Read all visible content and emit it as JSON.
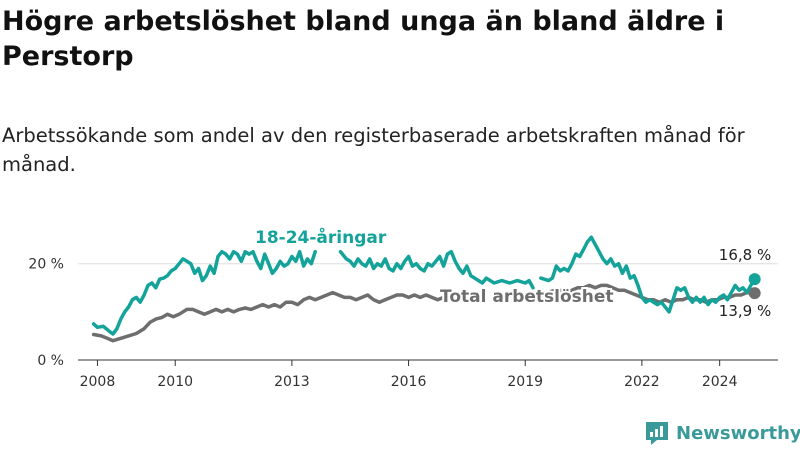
{
  "title": "Högre arbetslöshet bland unga än bland äldre i Perstorp",
  "subtitle": "Arbetssökande som andel av den registerbaserade arbetskraften månad för månad.",
  "brand": {
    "name": "Newsworthy",
    "color": "#3a9a9a"
  },
  "colors": {
    "youth": "#14a39a",
    "total": "#6e6e6e",
    "grid": "#dddddd",
    "axis": "#333333"
  },
  "chart_data": {
    "type": "line",
    "xlim": [
      2007.5,
      2025.5
    ],
    "ylim": [
      0,
      27
    ],
    "x_ticks": [
      2008,
      2010,
      2013,
      2016,
      2019,
      2022,
      2024
    ],
    "x_tick_labels": [
      "2008",
      "2010",
      "2013",
      "2016",
      "2019",
      "2022",
      "2024"
    ],
    "y_ticks": [
      0,
      20
    ],
    "y_tick_labels": [
      "0 %",
      "20 %"
    ],
    "series": [
      {
        "name": "18-24-åringar",
        "label": "18-24-åringar",
        "color": "#14a39a",
        "end_value": 16.8,
        "end_label": "16,8 %",
        "points": [
          [
            2007.9,
            7.5
          ],
          [
            2008.0,
            6.8
          ],
          [
            2008.15,
            7.0
          ],
          [
            2008.3,
            6.0
          ],
          [
            2008.4,
            5.4
          ],
          [
            2008.5,
            6.5
          ],
          [
            2008.6,
            8.5
          ],
          [
            2008.7,
            10.0
          ],
          [
            2008.8,
            11.0
          ],
          [
            2008.9,
            12.5
          ],
          [
            2009.0,
            13.0
          ],
          [
            2009.1,
            12.0
          ],
          [
            2009.2,
            13.5
          ],
          [
            2009.3,
            15.5
          ],
          [
            2009.4,
            16.0
          ],
          [
            2009.5,
            15.0
          ],
          [
            2009.6,
            16.8
          ],
          [
            2009.7,
            17.0
          ],
          [
            2009.8,
            17.5
          ],
          [
            2009.9,
            18.5
          ],
          [
            2010.0,
            19.0
          ],
          [
            2010.1,
            20.0
          ],
          [
            2010.2,
            21.0
          ],
          [
            2010.3,
            20.5
          ],
          [
            2010.4,
            20.0
          ],
          [
            2010.5,
            18.0
          ],
          [
            2010.6,
            19.0
          ],
          [
            2010.7,
            16.5
          ],
          [
            2010.8,
            17.5
          ],
          [
            2010.9,
            19.5
          ],
          [
            2011.0,
            18.0
          ],
          [
            2011.1,
            21.5
          ],
          [
            2011.2,
            22.5
          ],
          [
            2011.3,
            22.0
          ],
          [
            2011.4,
            21.0
          ],
          [
            2011.5,
            22.5
          ],
          [
            2011.6,
            22.0
          ],
          [
            2011.7,
            20.5
          ],
          [
            2011.8,
            22.5
          ],
          [
            2011.9,
            22.0
          ],
          [
            2012.0,
            22.5
          ],
          [
            2012.1,
            20.5
          ],
          [
            2012.2,
            19.0
          ],
          [
            2012.3,
            22.0
          ],
          [
            2012.4,
            20.0
          ],
          [
            2012.5,
            18.0
          ],
          [
            2012.6,
            19.0
          ],
          [
            2012.7,
            20.5
          ],
          [
            2012.8,
            19.5
          ],
          [
            2012.9,
            20.0
          ],
          [
            2013.0,
            21.5
          ],
          [
            2013.1,
            20.5
          ],
          [
            2013.2,
            22.5
          ],
          [
            2013.3,
            19.5
          ],
          [
            2013.4,
            21.0
          ],
          [
            2013.5,
            20.0
          ],
          [
            2013.6,
            22.5
          ],
          null,
          [
            2014.25,
            22.5
          ],
          [
            2014.4,
            21.0
          ],
          [
            2014.5,
            20.5
          ],
          [
            2014.6,
            19.5
          ],
          [
            2014.7,
            21.0
          ],
          [
            2014.8,
            20.0
          ],
          [
            2014.9,
            19.5
          ],
          [
            2015.0,
            21.0
          ],
          [
            2015.1,
            19.0
          ],
          [
            2015.2,
            20.0
          ],
          [
            2015.3,
            19.5
          ],
          [
            2015.4,
            21.0
          ],
          [
            2015.5,
            19.0
          ],
          [
            2015.6,
            18.5
          ],
          [
            2015.7,
            20.0
          ],
          [
            2015.8,
            19.0
          ],
          [
            2015.9,
            20.5
          ],
          [
            2016.0,
            21.5
          ],
          [
            2016.1,
            19.5
          ],
          [
            2016.2,
            20.0
          ],
          [
            2016.3,
            19.0
          ],
          [
            2016.4,
            18.5
          ],
          [
            2016.5,
            20.0
          ],
          [
            2016.6,
            19.5
          ],
          [
            2016.7,
            20.5
          ],
          [
            2016.8,
            21.5
          ],
          [
            2016.9,
            19.5
          ],
          [
            2017.0,
            22.0
          ],
          [
            2017.1,
            22.5
          ],
          [
            2017.2,
            20.5
          ],
          [
            2017.3,
            19.0
          ],
          [
            2017.4,
            18.0
          ],
          [
            2017.5,
            19.5
          ],
          [
            2017.6,
            17.5
          ],
          [
            2017.7,
            17.0
          ],
          [
            2017.8,
            16.5
          ],
          [
            2017.9,
            16.0
          ],
          [
            2018.0,
            17.0
          ],
          [
            2018.2,
            16.0
          ],
          [
            2018.4,
            16.5
          ],
          [
            2018.6,
            16.0
          ],
          [
            2018.8,
            16.5
          ],
          [
            2019.0,
            16.0
          ],
          [
            2019.1,
            16.5
          ],
          [
            2019.2,
            15.0
          ],
          null,
          [
            2019.4,
            17.0
          ],
          [
            2019.6,
            16.5
          ],
          [
            2019.7,
            17.0
          ],
          [
            2019.8,
            19.5
          ],
          [
            2019.9,
            18.5
          ],
          [
            2020.0,
            19.0
          ],
          [
            2020.1,
            18.5
          ],
          [
            2020.2,
            20.0
          ],
          [
            2020.3,
            22.0
          ],
          [
            2020.4,
            21.5
          ],
          [
            2020.5,
            23.0
          ],
          [
            2020.6,
            24.5
          ],
          [
            2020.7,
            25.5
          ],
          [
            2020.8,
            24.0
          ],
          [
            2020.9,
            22.5
          ],
          [
            2021.0,
            21.0
          ],
          [
            2021.1,
            20.0
          ],
          [
            2021.2,
            21.0
          ],
          [
            2021.3,
            19.5
          ],
          [
            2021.4,
            20.0
          ],
          [
            2021.5,
            18.0
          ],
          [
            2021.6,
            19.5
          ],
          [
            2021.7,
            17.0
          ],
          [
            2021.8,
            17.5
          ],
          [
            2021.9,
            15.5
          ],
          [
            2022.0,
            13.0
          ],
          [
            2022.1,
            12.0
          ],
          [
            2022.2,
            12.5
          ],
          [
            2022.3,
            12.0
          ],
          [
            2022.4,
            11.5
          ],
          [
            2022.5,
            12.0
          ],
          [
            2022.6,
            11.0
          ],
          [
            2022.7,
            10.0
          ],
          [
            2022.8,
            12.5
          ],
          [
            2022.9,
            15.0
          ],
          [
            2023.0,
            14.5
          ],
          [
            2023.1,
            15.0
          ],
          [
            2023.2,
            13.0
          ],
          [
            2023.3,
            12.0
          ],
          [
            2023.4,
            13.0
          ],
          [
            2023.5,
            12.0
          ],
          [
            2023.6,
            13.0
          ],
          [
            2023.7,
            11.5
          ],
          [
            2023.8,
            12.5
          ],
          [
            2023.9,
            12.0
          ],
          [
            2024.0,
            13.0
          ],
          [
            2024.1,
            13.5
          ],
          [
            2024.2,
            12.5
          ],
          [
            2024.3,
            14.0
          ],
          [
            2024.4,
            15.5
          ],
          [
            2024.5,
            14.5
          ],
          [
            2024.6,
            15.0
          ],
          [
            2024.7,
            14.0
          ],
          [
            2024.8,
            15.5
          ],
          [
            2024.9,
            16.8
          ]
        ]
      },
      {
        "name": "Total arbetslöshet",
        "label": "Total arbetslöshet",
        "color": "#6e6e6e",
        "end_value": 13.9,
        "end_label": "13,9 %",
        "points": [
          [
            2007.9,
            5.3
          ],
          [
            2008.1,
            5.0
          ],
          [
            2008.25,
            4.5
          ],
          [
            2008.4,
            4.0
          ],
          [
            2008.6,
            4.5
          ],
          [
            2008.8,
            5.0
          ],
          [
            2009.0,
            5.5
          ],
          [
            2009.2,
            6.5
          ],
          [
            2009.35,
            7.8
          ],
          [
            2009.5,
            8.5
          ],
          [
            2009.65,
            8.8
          ],
          [
            2009.8,
            9.5
          ],
          [
            2009.95,
            9.0
          ],
          [
            2010.1,
            9.5
          ],
          [
            2010.3,
            10.5
          ],
          [
            2010.45,
            10.5
          ],
          [
            2010.6,
            10.0
          ],
          [
            2010.75,
            9.5
          ],
          [
            2010.9,
            10.0
          ],
          [
            2011.05,
            10.5
          ],
          [
            2011.2,
            10.0
          ],
          [
            2011.35,
            10.5
          ],
          [
            2011.5,
            10.0
          ],
          [
            2011.65,
            10.5
          ],
          [
            2011.8,
            10.8
          ],
          [
            2011.95,
            10.5
          ],
          [
            2012.1,
            11.0
          ],
          [
            2012.25,
            11.5
          ],
          [
            2012.4,
            11.0
          ],
          [
            2012.55,
            11.5
          ],
          [
            2012.7,
            11.0
          ],
          [
            2012.85,
            12.0
          ],
          [
            2013.0,
            12.0
          ],
          [
            2013.15,
            11.5
          ],
          [
            2013.3,
            12.5
          ],
          [
            2013.45,
            13.0
          ],
          [
            2013.6,
            12.5
          ],
          [
            2013.75,
            13.0
          ],
          [
            2013.9,
            13.5
          ],
          [
            2014.05,
            14.0
          ],
          [
            2014.2,
            13.5
          ],
          [
            2014.35,
            13.0
          ],
          [
            2014.5,
            13.0
          ],
          [
            2014.65,
            12.5
          ],
          [
            2014.8,
            13.0
          ],
          [
            2014.95,
            13.5
          ],
          [
            2015.1,
            12.5
          ],
          [
            2015.25,
            12.0
          ],
          [
            2015.4,
            12.5
          ],
          [
            2015.55,
            13.0
          ],
          [
            2015.7,
            13.5
          ],
          [
            2015.85,
            13.5
          ],
          [
            2016.0,
            13.0
          ],
          [
            2016.15,
            13.5
          ],
          [
            2016.3,
            13.0
          ],
          [
            2016.45,
            13.5
          ],
          [
            2016.6,
            13.0
          ],
          [
            2016.75,
            12.5
          ],
          [
            2016.9,
            13.0
          ],
          [
            2017.05,
            13.0
          ],
          [
            2017.2,
            12.5
          ],
          [
            2017.35,
            12.5
          ],
          null,
          [
            2019.3,
            13.0
          ],
          [
            2019.45,
            13.5
          ],
          [
            2019.6,
            14.0
          ],
          [
            2019.75,
            14.5
          ],
          [
            2019.9,
            14.5
          ],
          [
            2020.05,
            14.0
          ],
          [
            2020.2,
            14.5
          ],
          [
            2020.35,
            15.0
          ],
          [
            2020.5,
            15.0
          ],
          [
            2020.65,
            15.5
          ],
          [
            2020.8,
            15.0
          ],
          [
            2020.95,
            15.5
          ],
          [
            2021.1,
            15.5
          ],
          [
            2021.25,
            15.0
          ],
          [
            2021.4,
            14.5
          ],
          [
            2021.55,
            14.5
          ],
          [
            2021.7,
            14.0
          ],
          [
            2021.85,
            13.5
          ],
          [
            2022.0,
            13.0
          ],
          [
            2022.15,
            12.5
          ],
          [
            2022.3,
            12.5
          ],
          [
            2022.45,
            12.0
          ],
          [
            2022.6,
            12.5
          ],
          [
            2022.75,
            12.0
          ],
          [
            2022.9,
            12.5
          ],
          [
            2023.05,
            12.5
          ],
          [
            2023.2,
            13.0
          ],
          [
            2023.35,
            12.5
          ],
          [
            2023.5,
            12.5
          ],
          [
            2023.65,
            12.0
          ],
          [
            2023.8,
            12.5
          ],
          [
            2023.95,
            12.5
          ],
          [
            2024.1,
            13.0
          ],
          [
            2024.25,
            13.0
          ],
          [
            2024.4,
            13.5
          ],
          [
            2024.55,
            13.5
          ],
          [
            2024.7,
            14.0
          ],
          [
            2024.9,
            13.9
          ]
        ]
      }
    ]
  }
}
